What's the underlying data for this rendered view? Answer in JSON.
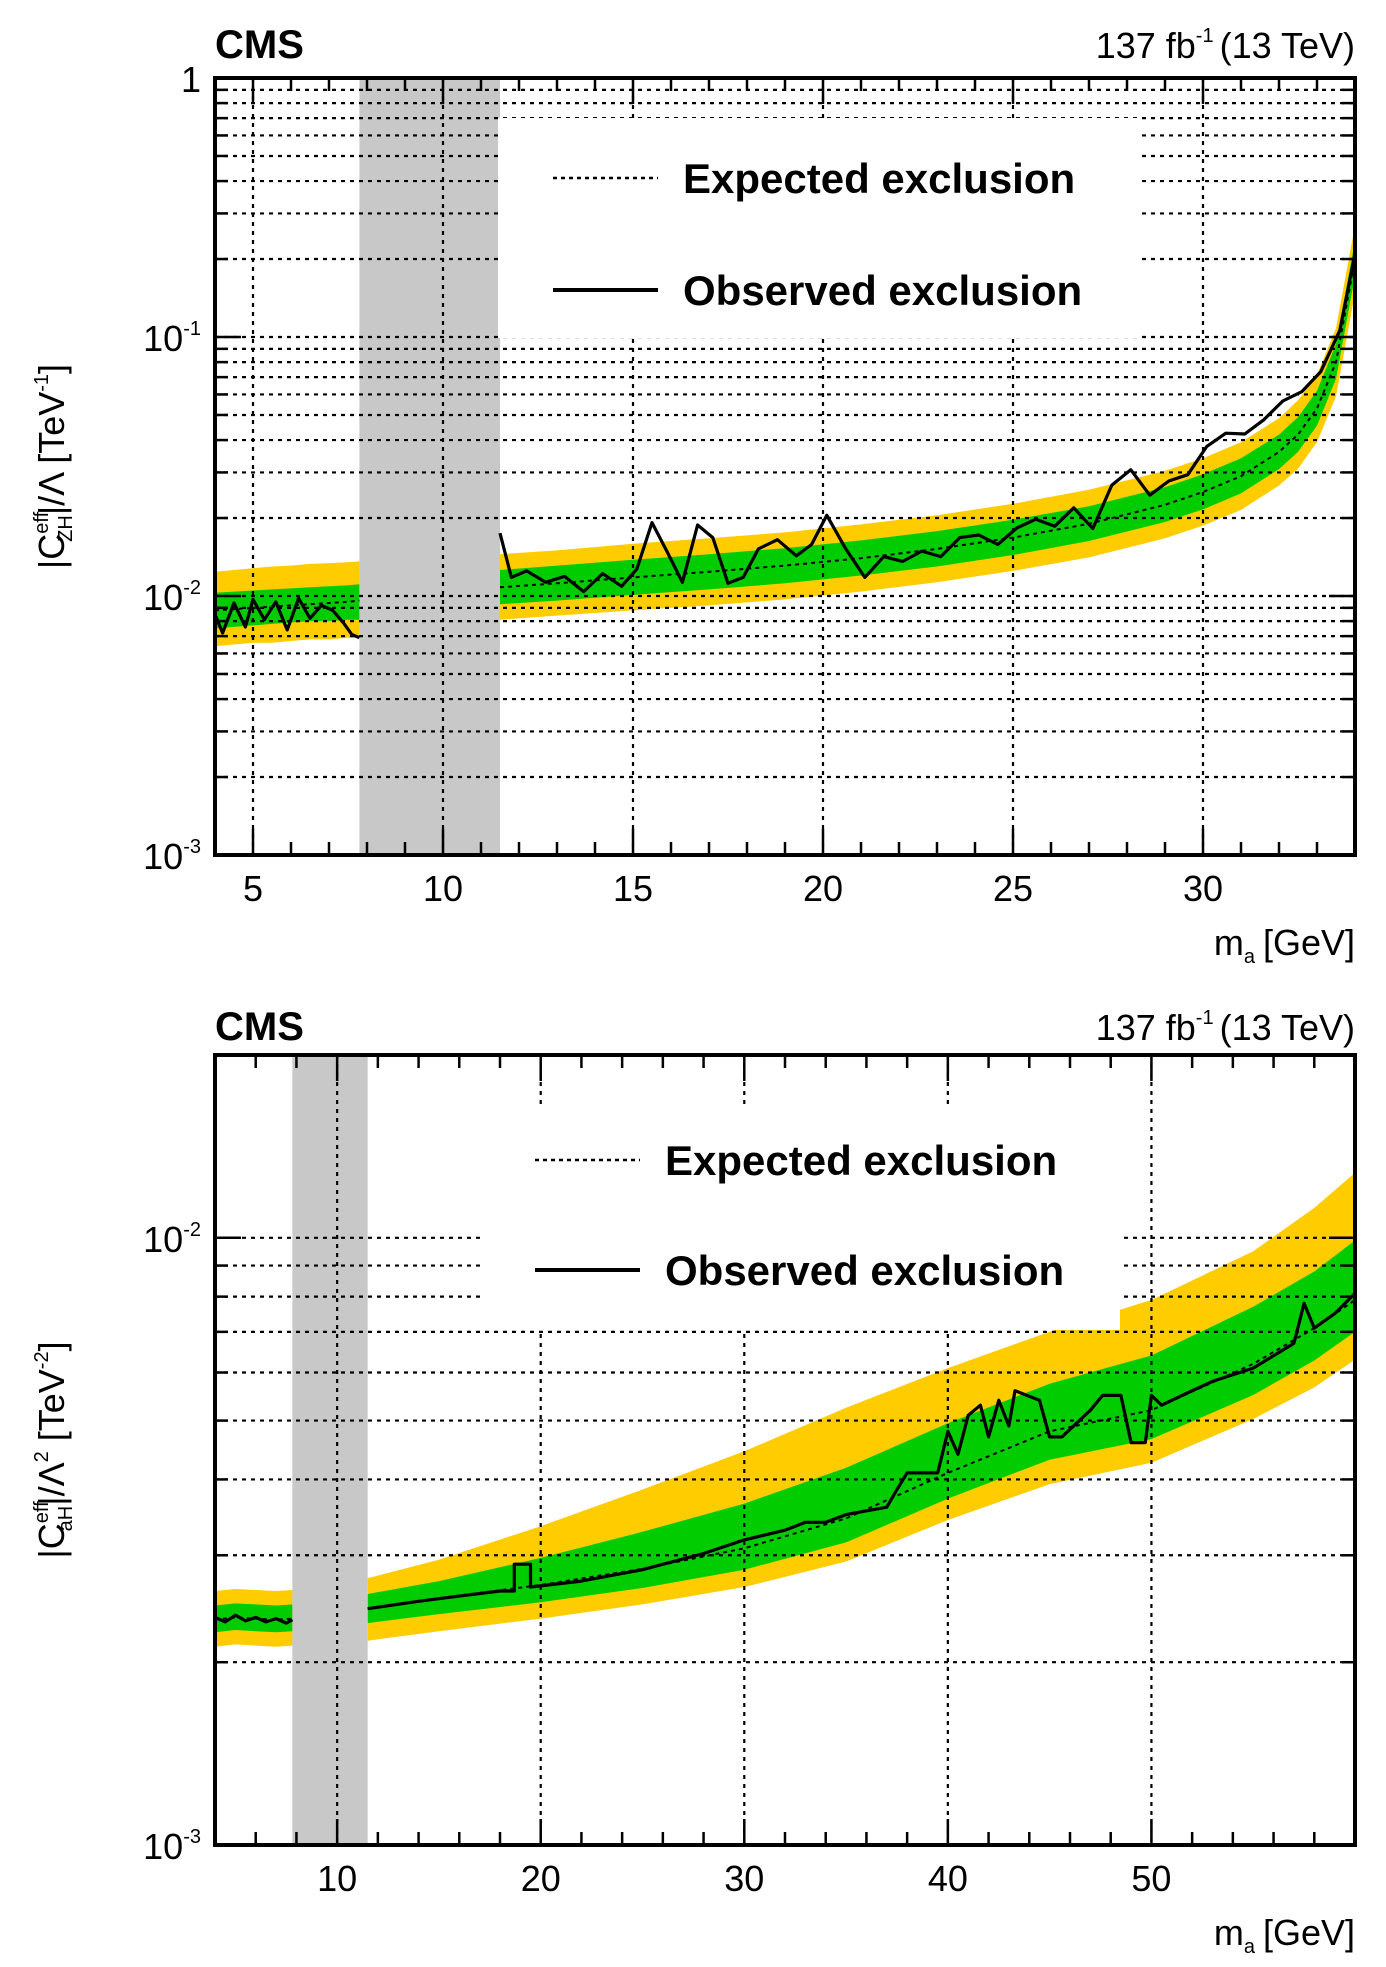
{
  "chart_data": [
    {
      "type": "line",
      "experiment": "CMS",
      "lumi": "137 fb",
      "lumi_exp": "-1",
      "energy": "(13 TeV)",
      "xlabel": "m",
      "xlabel_sub": "a",
      "xlabel_unit": "[GeV]",
      "ylabel_parts": [
        "|C",
        "eff",
        "ZH",
        "|/Λ [TeV",
        "-1",
        "]"
      ],
      "xlim": [
        4,
        34
      ],
      "ylim": [
        0.001,
        1
      ],
      "yscale": "log",
      "grid": true,
      "x_ticks": [
        5,
        10,
        15,
        20,
        25,
        30
      ],
      "x_tick_labels": [
        "5",
        "10",
        "15",
        "20",
        "25",
        "30"
      ],
      "y_ticks": [
        {
          "value": 1,
          "base": "1",
          "exp": ""
        },
        {
          "value": 0.1,
          "base": "10",
          "exp": "-1"
        },
        {
          "value": 0.01,
          "base": "10",
          "exp": "-2"
        },
        {
          "value": 0.001,
          "base": "10",
          "exp": "-3"
        }
      ],
      "excluded_region": [
        7.8,
        11.5
      ],
      "legend": {
        "expected": "Expected exclusion",
        "observed": "Observed exclusion",
        "placement": "top-center"
      },
      "colors": {
        "band_2sigma": "#ffcc00",
        "band_1sigma": "#00cc00",
        "excluded": "#c8c8c8",
        "line": "#000000"
      },
      "segments": [
        {
          "x": [
            4,
            4.5,
            5,
            5.5,
            6,
            6.5,
            7,
            7.5,
            7.8
          ],
          "expected": [
            0.0088,
            0.0089,
            0.009,
            0.0091,
            0.0092,
            0.0093,
            0.0094,
            0.0095,
            0.0096
          ],
          "band1_lo": [
            0.0075,
            0.0076,
            0.0077,
            0.0078,
            0.0079,
            0.008,
            0.008,
            0.0081,
            0.0081
          ],
          "band1_hi": [
            0.0103,
            0.0104,
            0.0105,
            0.0106,
            0.0107,
            0.0108,
            0.0109,
            0.011,
            0.0111
          ],
          "band2_lo": [
            0.0064,
            0.0065,
            0.0066,
            0.0066,
            0.0067,
            0.0068,
            0.0068,
            0.0069,
            0.0069
          ],
          "band2_hi": [
            0.0124,
            0.0126,
            0.0128,
            0.013,
            0.0131,
            0.0133,
            0.0134,
            0.0135,
            0.0136
          ],
          "obs_x": [
            4,
            4.2,
            4.5,
            4.8,
            5,
            5.3,
            5.6,
            5.9,
            6.2,
            6.5,
            6.8,
            7.1,
            7.4,
            7.6,
            7.8
          ],
          "obs_y": [
            0.0085,
            0.0072,
            0.0094,
            0.0076,
            0.0097,
            0.0081,
            0.0095,
            0.0074,
            0.0098,
            0.0082,
            0.0092,
            0.0088,
            0.0078,
            0.0071,
            0.0069
          ]
        },
        {
          "x": [
            11.5,
            13,
            15,
            17,
            19,
            21,
            23,
            25,
            27,
            29,
            30,
            31,
            32,
            32.5,
            33,
            33.5,
            34
          ],
          "expected": [
            0.0108,
            0.0112,
            0.0118,
            0.0124,
            0.0131,
            0.014,
            0.0152,
            0.0168,
            0.019,
            0.0225,
            0.0252,
            0.029,
            0.036,
            0.042,
            0.053,
            0.08,
            0.2
          ],
          "band1_lo": [
            0.0093,
            0.0096,
            0.0101,
            0.0106,
            0.0112,
            0.012,
            0.013,
            0.0144,
            0.0163,
            0.0193,
            0.0216,
            0.0249,
            0.0309,
            0.036,
            0.0455,
            0.069,
            0.172
          ],
          "band1_hi": [
            0.0126,
            0.0131,
            0.0138,
            0.0145,
            0.0153,
            0.0164,
            0.0178,
            0.0197,
            0.0222,
            0.0263,
            0.0295,
            0.034,
            0.042,
            0.049,
            0.062,
            0.094,
            0.235
          ],
          "band2_lo": [
            0.0081,
            0.0084,
            0.0088,
            0.0092,
            0.0097,
            0.0104,
            0.0113,
            0.0125,
            0.0141,
            0.0167,
            0.0187,
            0.0215,
            0.0267,
            0.031,
            0.0393,
            0.059,
            0.148
          ],
          "band2_hi": [
            0.0145,
            0.015,
            0.0159,
            0.0167,
            0.0176,
            0.0189,
            0.0205,
            0.0227,
            0.0257,
            0.0304,
            0.034,
            0.0392,
            0.0486,
            0.057,
            0.0716,
            0.108,
            0.27
          ],
          "obs_x": [
            11.5,
            11.8,
            12.2,
            12.7,
            13.2,
            13.7,
            14.2,
            14.7,
            15.1,
            15.5,
            15.9,
            16.3,
            16.7,
            17.1,
            17.5,
            17.9,
            18.3,
            18.8,
            19.3,
            19.7,
            20.1,
            20.6,
            21.1,
            21.6,
            22.1,
            22.6,
            23.1,
            23.6,
            24.1,
            24.6,
            25.1,
            25.6,
            26.1,
            26.6,
            27.1,
            27.6,
            28.1,
            28.6,
            29.1,
            29.6,
            30.1,
            30.6,
            31.1,
            31.6,
            32.1,
            32.6,
            33.1,
            33.6,
            34
          ],
          "obs_y": [
            0.0175,
            0.0118,
            0.0125,
            0.0113,
            0.0119,
            0.0104,
            0.0122,
            0.0109,
            0.0127,
            0.0192,
            0.0148,
            0.0113,
            0.0188,
            0.0168,
            0.0112,
            0.0118,
            0.0152,
            0.0165,
            0.0143,
            0.0158,
            0.0205,
            0.0152,
            0.0118,
            0.0142,
            0.0136,
            0.0149,
            0.0142,
            0.0168,
            0.0172,
            0.0158,
            0.0183,
            0.0198,
            0.0186,
            0.0219,
            0.0182,
            0.0268,
            0.0307,
            0.0245,
            0.0278,
            0.0294,
            0.0378,
            0.0425,
            0.0422,
            0.0479,
            0.0566,
            0.0615,
            0.0735,
            0.106,
            0.21
          ]
        }
      ]
    },
    {
      "type": "line",
      "experiment": "CMS",
      "lumi": "137 fb",
      "lumi_exp": "-1",
      "energy": "(13 TeV)",
      "xlabel": "m",
      "xlabel_sub": "a",
      "xlabel_unit": "[GeV]",
      "ylabel_parts": [
        "|C",
        "eff",
        "aH",
        "|/Λ",
        "2",
        " [TeV",
        "-2",
        "]"
      ],
      "xlim": [
        4,
        60
      ],
      "ylim": [
        0.001,
        0.02
      ],
      "yscale": "log",
      "grid": true,
      "x_ticks": [
        10,
        20,
        30,
        40,
        50
      ],
      "x_tick_labels": [
        "10",
        "20",
        "30",
        "40",
        "50"
      ],
      "y_ticks": [
        {
          "value": 0.01,
          "base": "10",
          "exp": "-2"
        },
        {
          "value": 0.001,
          "base": "10",
          "exp": "-3"
        }
      ],
      "excluded_region": [
        7.8,
        11.5
      ],
      "legend": {
        "expected": "Expected exclusion",
        "observed": "Observed exclusion",
        "placement": "top-center"
      },
      "colors": {
        "band_2sigma": "#ffcc00",
        "band_1sigma": "#00cc00",
        "excluded": "#c8c8c8",
        "line": "#000000"
      },
      "segments": [
        {
          "x": [
            4,
            5,
            6,
            7,
            7.8
          ],
          "expected": [
            0.00235,
            0.00237,
            0.00236,
            0.00235,
            0.00236
          ],
          "band1_lo": [
            0.00224,
            0.00226,
            0.00225,
            0.00224,
            0.00225
          ],
          "band1_hi": [
            0.00248,
            0.0025,
            0.00249,
            0.00248,
            0.00249
          ],
          "band2_lo": [
            0.00212,
            0.00214,
            0.00213,
            0.00212,
            0.00213
          ],
          "band2_hi": [
            0.00262,
            0.00264,
            0.00263,
            0.00262,
            0.00263
          ],
          "obs_x": [
            4,
            4.5,
            5,
            5.5,
            6,
            6.5,
            7,
            7.5,
            7.8
          ],
          "obs_y": [
            0.00237,
            0.00233,
            0.00239,
            0.00234,
            0.00237,
            0.00233,
            0.00236,
            0.00232,
            0.00235
          ]
        },
        {
          "x": [
            11.5,
            15,
            20,
            25,
            30,
            35,
            40,
            45,
            50,
            55,
            58,
            60
          ],
          "expected": [
            0.00245,
            0.00255,
            0.00268,
            0.00285,
            0.00308,
            0.00345,
            0.0041,
            0.0048,
            0.0052,
            0.0062,
            0.0071,
            0.0079
          ],
          "band1_lo": [
            0.00232,
            0.0024,
            0.00251,
            0.00265,
            0.00284,
            0.00315,
            0.00372,
            0.00431,
            0.00466,
            0.00551,
            0.00628,
            0.007
          ],
          "band1_hi": [
            0.00259,
            0.00272,
            0.00297,
            0.00328,
            0.00365,
            0.00418,
            0.00495,
            0.00575,
            0.0064,
            0.0077,
            0.0088,
            0.0099
          ],
          "band2_lo": [
            0.00217,
            0.00225,
            0.00236,
            0.00249,
            0.00266,
            0.00293,
            0.00343,
            0.00393,
            0.00426,
            0.00503,
            0.00567,
            0.0063
          ],
          "band2_hi": [
            0.00275,
            0.00295,
            0.00335,
            0.00385,
            0.00445,
            0.00525,
            0.0061,
            0.007,
            0.0079,
            0.0095,
            0.0112,
            0.0128
          ],
          "obs_x": [
            11.5,
            14,
            16,
            18,
            18.7,
            18.7,
            19.5,
            19.5,
            22,
            25,
            28,
            30,
            32,
            33,
            34,
            35,
            37,
            37.5,
            38,
            39.5,
            40,
            40.5,
            41,
            41.6,
            42,
            42.5,
            43,
            43.3,
            44.5,
            45,
            45.6,
            47,
            47.6,
            48.5,
            49,
            49.7,
            50,
            50.5,
            51,
            52,
            53,
            55,
            57,
            57.5,
            58,
            59,
            60
          ],
          "obs_y": [
            0.00245,
            0.00252,
            0.00257,
            0.00262,
            0.00262,
            0.0029,
            0.0029,
            0.00266,
            0.00272,
            0.00284,
            0.00302,
            0.00318,
            0.0033,
            0.0034,
            0.0034,
            0.0035,
            0.0036,
            0.00385,
            0.0041,
            0.0041,
            0.0048,
            0.0044,
            0.0051,
            0.0053,
            0.0047,
            0.0054,
            0.0049,
            0.0056,
            0.0054,
            0.0047,
            0.0047,
            0.0052,
            0.0055,
            0.0055,
            0.0046,
            0.0046,
            0.0055,
            0.0053,
            0.0054,
            0.0056,
            0.0058,
            0.0061,
            0.0067,
            0.0078,
            0.0071,
            0.0075,
            0.0081
          ]
        }
      ]
    }
  ]
}
